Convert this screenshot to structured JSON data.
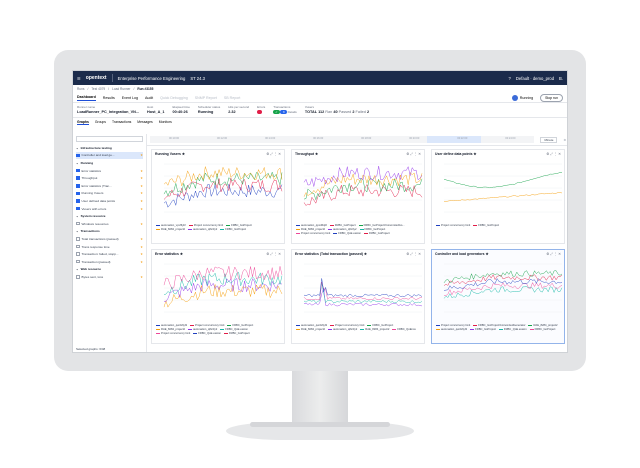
{
  "app": {
    "logo": "opentext",
    "product": "Enterprise Performance Engineering",
    "version": "ST 24.3",
    "tenant": "Default · demo_prod",
    "user": "B."
  },
  "breadcrumb": [
    "Runs",
    "Test 4079",
    "Load Runner"
  ],
  "run_id": "Run #3155",
  "tabs": [
    "Dashboard",
    "Results",
    "Event Log",
    "Audit",
    "Quick Debugging",
    "SNMP Report",
    "SB Report"
  ],
  "status": {
    "label": "Running",
    "stop_label": "Stop run"
  },
  "info": [
    {
      "label": "Runner name",
      "value": "LoadRunner_PC_Integration_VN..."
    },
    {
      "label": "Host",
      "value": "Host_A_1"
    },
    {
      "label": "Elapsed time",
      "value": "00:40:26"
    },
    {
      "label": "Scheduler status",
      "value": "Running"
    },
    {
      "label": "Hits per second",
      "value": "2.32"
    },
    {
      "label": "Errors",
      "value": ""
    },
    {
      "label": "Transactions",
      "value": "Details"
    },
    {
      "label": "Vusers",
      "value": "TOTAL 112"
    }
  ],
  "vuser_counts": {
    "running_label": "Ran",
    "passed_label": "Passed",
    "failed_label": "Failed",
    "running": "40",
    "passed": "2",
    "failed": "2"
  },
  "subtabs": [
    "Graphs",
    "Groups",
    "Transactions",
    "Messages",
    "Monitors"
  ],
  "sidebar": {
    "search_placeholder": "",
    "items": [
      {
        "label": "Infrastructure testing",
        "head": true
      },
      {
        "label": "Controller and load ge...",
        "selected": true,
        "check": true
      },
      {
        "label": "Running",
        "head": true
      },
      {
        "label": "Error statistics",
        "check": true
      },
      {
        "label": "Throughput",
        "check": true
      },
      {
        "label": "Error statistics (Tran...",
        "check": true
      },
      {
        "label": "Running Vusers",
        "check": true
      },
      {
        "label": "User defined data points",
        "check": true
      },
      {
        "label": "Vusers with errors",
        "check": true
      },
      {
        "label": "System resource",
        "head": true
      },
      {
        "label": "Windows resources",
        "check": false
      },
      {
        "label": "Transactions",
        "head": true
      },
      {
        "label": "Total transactions (passed)",
        "check": false
      },
      {
        "label": "Trans response time",
        "check": false
      },
      {
        "label": "Transaction: failed, stopp...",
        "check": false
      },
      {
        "label": "Transaction (passed)",
        "check": false
      },
      {
        "label": "Web resource",
        "head": true
      },
      {
        "label": "Bytes sent, loss",
        "check": false
      }
    ],
    "footer": "Selected graphs: 6/48"
  },
  "timeline": {
    "ticks": [
      "00:10:00",
      "00:12:00",
      "00:14:00",
      "00:16:00",
      "00:18:00",
      "00:20:00",
      "00:22:00",
      "00:24:00"
    ],
    "window": "Minute"
  },
  "graphs": [
    {
      "title": "Running Vusers",
      "legend": [
        "automation_vpxf6yf2",
        "Project concurrency limit",
        "FRBC_GoProject",
        "RAE_8284_project2",
        "automation_qt6c3y2",
        "FRBC_GoProject"
      ]
    },
    {
      "title": "Throughput",
      "legend": [
        "automation_qpxd6qf2",
        "FRBC_GoProject",
        "FRBC_GoProject/CoinomitedGo...",
        "RAE_8284_project2",
        "automation_q6c3y2",
        "FRBC_GoProject",
        "Project concurrency limit",
        "FRBC_QoE.ession",
        "FRBC_GoProject"
      ]
    },
    {
      "title": "User define data points",
      "legend": [
        "Project concurrency limit",
        "FRBC_GoProject"
      ]
    },
    {
      "title": "Error statistics",
      "legend": [
        "automation_qwdx6yf2",
        "Project concurrency limit",
        "FRBC_GoProject",
        "RAE_8284_project2",
        "automation_qt6c3y2",
        "FRBC_QoE.ession",
        "Project concurrency limit",
        "FRBC_QoE.ession",
        "FRBC_GoProject"
      ]
    },
    {
      "title": "Error statistics (Total transaction (passed)",
      "legend": [
        "automation_qwdx6yf2",
        "Project concurrency limit",
        "FRBC_GoProject",
        "RAE_8284_project2",
        "automation_qt6c3y2",
        "RAE_8284_project2",
        "FRBC_QoEnce"
      ]
    },
    {
      "title": "Controller and load generators",
      "legend": [
        "Project concurrency limit",
        "FRBC_GoProject/CoinomitedGenerator",
        "RAE_8284_project2",
        "automation_qwdx6yf2",
        "FRBC_GoProject",
        "FRBC_QoE.ession",
        "FRBC_GoProject"
      ]
    }
  ],
  "colors": {
    "topbar": "#1b2b4b",
    "accent": "#2563eb",
    "series": [
      "#1f3fbf",
      "#e11d48",
      "#16a34a",
      "#f59e0b",
      "#9333ea",
      "#14b8a6",
      "#ec4899"
    ]
  }
}
